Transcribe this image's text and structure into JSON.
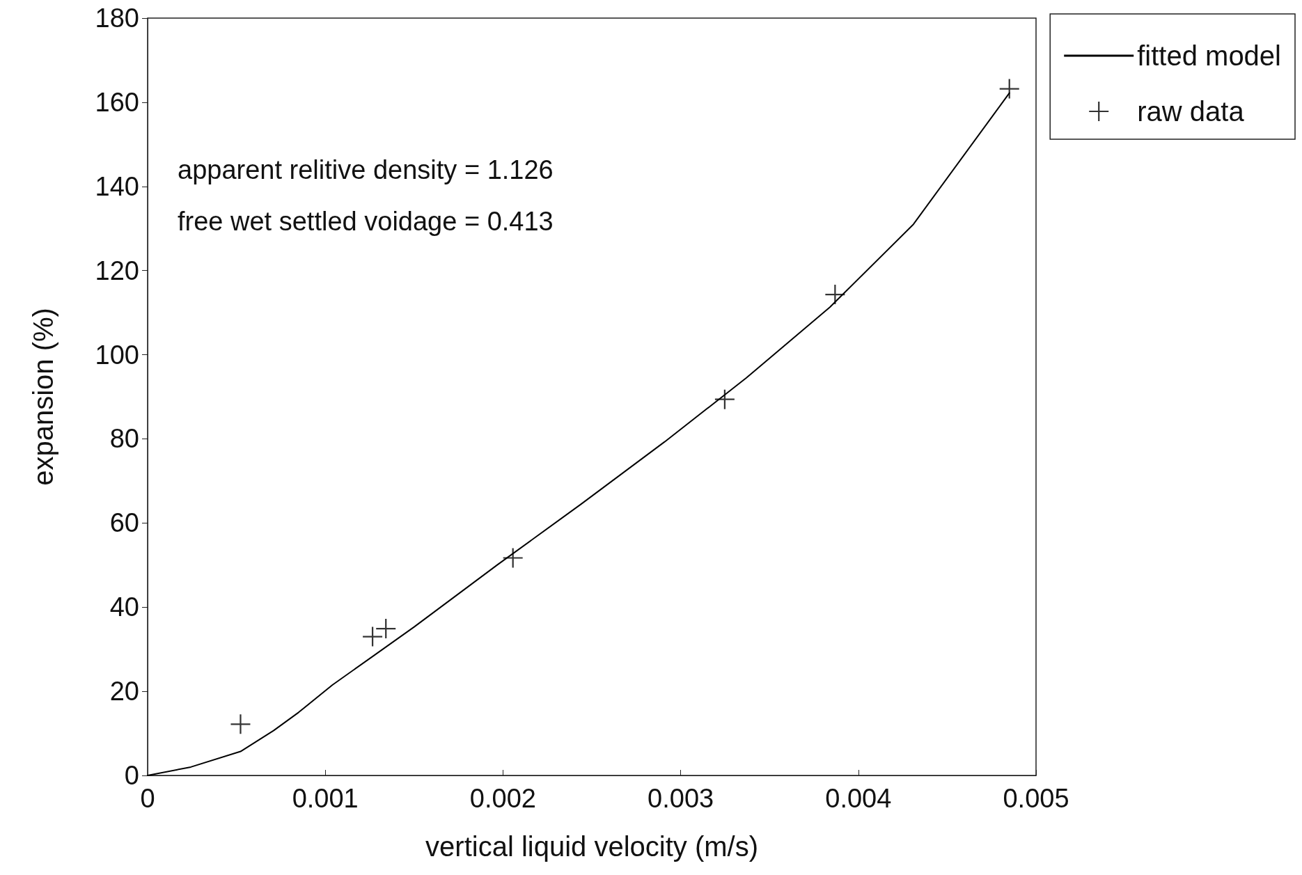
{
  "chart_data": {
    "type": "line",
    "xlabel": "vertical liquid velocity (m/s)",
    "ylabel": "expansion (%)",
    "annotations": [
      "apparent relitive density = 1.126",
      "free wet settled voidage = 0.413"
    ],
    "series": [
      {
        "name": "fitted model",
        "color": "#000000",
        "marker": "none",
        "line_style": "solid",
        "x": [
          0,
          0.000243,
          0.000523,
          0.00071,
          0.00085,
          0.00104,
          0.00127,
          0.0015,
          0.00197,
          0.00244,
          0.00291,
          0.00337,
          0.00384,
          0.00431,
          0.00485
        ],
        "values": [
          0,
          2,
          5.7,
          10.7,
          15,
          21.5,
          28.4,
          35.3,
          50.1,
          64.5,
          79.3,
          94.5,
          111.3,
          131,
          162.2
        ]
      },
      {
        "name": "raw data",
        "type": "scatter",
        "color": "#000000",
        "marker": "cross",
        "x": [
          0.000523,
          0.001266,
          0.001341,
          0.002056,
          0.003248,
          0.003869,
          0.00485
        ],
        "values": [
          12.2,
          33,
          34.9,
          51.7,
          89.4,
          114.3,
          163.2
        ]
      }
    ],
    "xlim": [
      0,
      0.005
    ],
    "xticks": [
      0,
      0.001,
      0.002,
      0.003,
      0.004,
      0.005
    ],
    "ylim": [
      0,
      180
    ],
    "yticks": [
      0,
      20,
      40,
      60,
      80,
      100,
      120,
      140,
      160,
      180
    ],
    "grid": false,
    "legend": "top right"
  }
}
